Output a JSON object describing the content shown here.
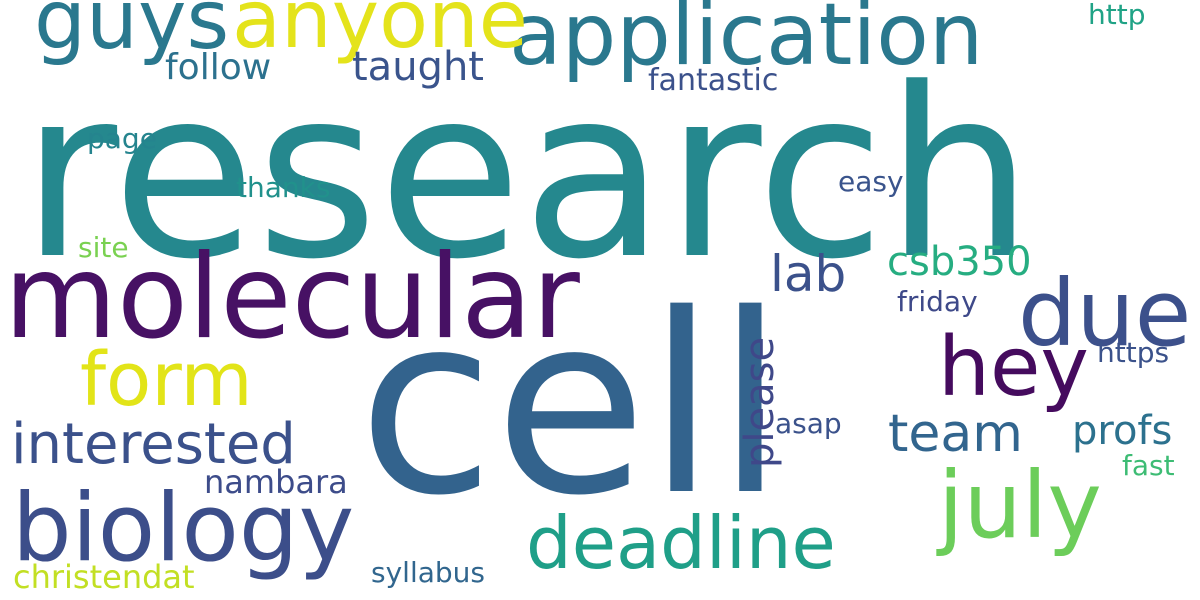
{
  "words": {
    "research": {
      "text": "research",
      "color": "#25888e"
    },
    "cell": {
      "text": "cell",
      "color": "#33638d"
    },
    "molecular": {
      "text": "molecular",
      "color": "#471164"
    },
    "application": {
      "text": "application",
      "color": "#2a788e"
    },
    "guys": {
      "text": "guys",
      "color": "#2a788e"
    },
    "anyone": {
      "text": "anyone",
      "color": "#e4e31b"
    },
    "biology": {
      "text": "biology",
      "color": "#3c4e8a"
    },
    "deadline": {
      "text": "deadline",
      "color": "#1f9f88"
    },
    "july": {
      "text": "july",
      "color": "#6ccd5a"
    },
    "due": {
      "text": "due",
      "color": "#3c508b"
    },
    "hey": {
      "text": "hey",
      "color": "#450b5e"
    },
    "form": {
      "text": "form",
      "color": "#e2e418"
    },
    "interested": {
      "text": "interested",
      "color": "#3b518b"
    },
    "team": {
      "text": "team",
      "color": "#32658e"
    },
    "lab": {
      "text": "lab",
      "color": "#3b518b"
    },
    "csb350": {
      "text": "csb350",
      "color": "#26ad81"
    },
    "taught": {
      "text": "taught",
      "color": "#3a548c"
    },
    "follow": {
      "text": "follow",
      "color": "#2c718e"
    },
    "profs": {
      "text": "profs",
      "color": "#2c718e"
    },
    "nambara": {
      "text": "nambara",
      "color": "#3d4c8a"
    },
    "christendat": {
      "text": "christendat",
      "color": "#c2df23"
    },
    "please": {
      "text": "please",
      "color": "#3f4889"
    },
    "fantastic": {
      "text": "fantastic",
      "color": "#3b518b"
    },
    "page": {
      "text": "page",
      "color": "#25848e"
    },
    "thanks": {
      "text": "thanks",
      "color": "#21918c"
    },
    "easy": {
      "text": "easy",
      "color": "#3a548c"
    },
    "site": {
      "text": "site",
      "color": "#7ad151"
    },
    "friday": {
      "text": "friday",
      "color": "#3e4989"
    },
    "https": {
      "text": "https",
      "color": "#3b528b"
    },
    "asap": {
      "text": "asap",
      "color": "#3b528b"
    },
    "fast": {
      "text": "fast",
      "color": "#3dbc74"
    },
    "syllabus": {
      "text": "syllabus",
      "color": "#31668e"
    },
    "http": {
      "text": "http",
      "color": "#20a386"
    }
  }
}
